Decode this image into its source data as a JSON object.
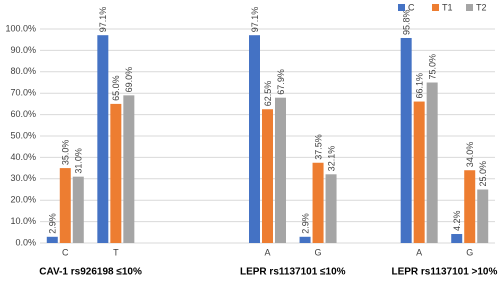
{
  "chart_data": {
    "type": "bar",
    "categories": [
      "C",
      "T",
      null,
      null,
      "A",
      "G",
      null,
      "A",
      "G"
    ],
    "group_labels": [
      "CAV-1 rs926198 ≤10%",
      "LEPR rs1137101 ≤10%",
      "LEPR rs1137101 >10%"
    ],
    "series": [
      {
        "name": "C",
        "color": "#4472c4",
        "values": [
          2.9,
          97.1,
          null,
          null,
          97.1,
          2.9,
          null,
          95.8,
          4.2
        ],
        "value_labels": [
          "2.9%",
          "97.1%",
          null,
          null,
          "97.1%",
          "2.9%",
          null,
          "95.8%",
          "4.2%"
        ]
      },
      {
        "name": "T1",
        "color": "#ed7d31",
        "values": [
          35.0,
          65.0,
          null,
          null,
          62.5,
          37.5,
          null,
          66.1,
          34.0
        ],
        "value_labels": [
          "35.0%",
          "65.0%",
          null,
          null,
          "62.5%",
          "37.5%",
          null,
          "66.1%",
          "34.0%"
        ]
      },
      {
        "name": "T2",
        "color": "#a5a5a5",
        "values": [
          31.0,
          69.0,
          null,
          null,
          67.9,
          32.1,
          null,
          75.0,
          25.0
        ],
        "value_labels": [
          "31.0%",
          "69.0%",
          null,
          null,
          "67.9%",
          "32.1%",
          null,
          "75.0%",
          "25.0%"
        ]
      }
    ],
    "ylim": [
      0,
      100
    ],
    "yticks": [
      {
        "value": 0,
        "label": "0.0%"
      },
      {
        "value": 10,
        "label": "10.0%"
      },
      {
        "value": 20,
        "label": "20.0%"
      },
      {
        "value": 30,
        "label": "30.0%"
      },
      {
        "value": 40,
        "label": "40.0%"
      },
      {
        "value": 50,
        "label": "50.0%"
      },
      {
        "value": 60,
        "label": "60.0%"
      },
      {
        "value": 70,
        "label": "70.0%"
      },
      {
        "value": 80,
        "label": "80.0%"
      },
      {
        "value": 90,
        "label": "90.0%"
      },
      {
        "value": 100,
        "label": "100.0%"
      }
    ],
    "grid": true,
    "legend": "top-right"
  }
}
